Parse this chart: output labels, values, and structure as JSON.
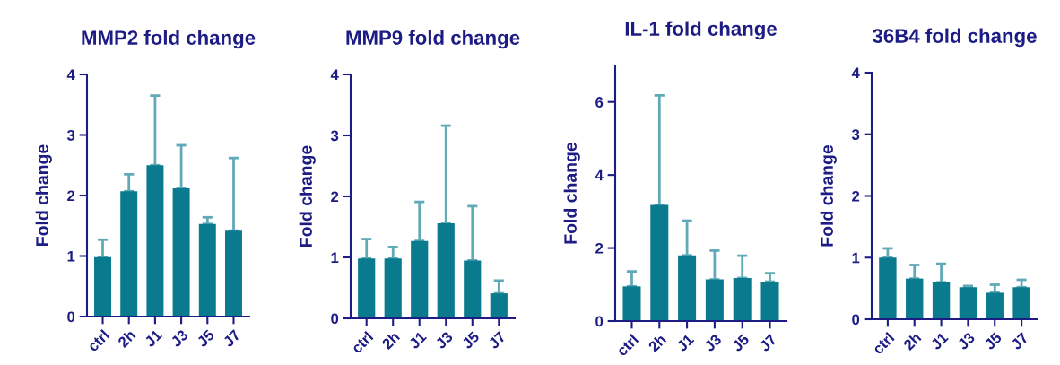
{
  "chart_data": [
    {
      "type": "bar",
      "title": "MMP2 fold change",
      "ylabel": "Fold change",
      "categories": [
        "ctrl",
        "2h",
        "J1",
        "J3",
        "J5",
        "J7"
      ],
      "ylim": [
        0,
        4
      ],
      "yticks": [
        0,
        1,
        2,
        3,
        4
      ],
      "grid": false,
      "legend": false,
      "series": [
        {
          "color": "#0a7a8e",
          "values": [
            0.98,
            2.07,
            2.5,
            2.12,
            1.53,
            1.42
          ],
          "errors": [
            [
              0.98,
              1.27
            ],
            [
              2.07,
              2.35
            ],
            [
              2.5,
              3.65
            ],
            [
              2.12,
              2.83
            ],
            [
              1.53,
              1.64
            ],
            [
              1.42,
              2.62
            ]
          ]
        }
      ]
    },
    {
      "type": "bar",
      "title": "MMP9 fold change",
      "ylabel": "Fold change",
      "categories": [
        "ctrl",
        "2h",
        "J1",
        "J3",
        "J5",
        "J7"
      ],
      "ylim": [
        0,
        4
      ],
      "yticks": [
        0,
        1,
        2,
        3,
        4
      ],
      "grid": false,
      "legend": false,
      "series": [
        {
          "color": "#0a7a8e",
          "values": [
            0.98,
            0.98,
            1.27,
            1.56,
            0.95,
            0.41
          ],
          "errors": [
            [
              0.98,
              1.3
            ],
            [
              0.98,
              1.17
            ],
            [
              1.27,
              1.91
            ],
            [
              1.56,
              3.16
            ],
            [
              0.95,
              1.84
            ],
            [
              0.41,
              0.62
            ]
          ]
        }
      ]
    },
    {
      "type": "bar",
      "title": "IL-1 fold change",
      "ylabel": "Fold change",
      "categories": [
        "ctrl",
        "2h",
        "J1",
        "J3",
        "J5",
        "J7"
      ],
      "ylim": [
        0,
        7
      ],
      "yticks": [
        0,
        2,
        4,
        6
      ],
      "grid": false,
      "legend": false,
      "series": [
        {
          "color": "#0a7a8e",
          "values": [
            0.95,
            3.18,
            1.8,
            1.14,
            1.18,
            1.08
          ],
          "errors": [
            [
              0.95,
              1.36
            ],
            [
              3.18,
              6.18
            ],
            [
              1.8,
              2.75
            ],
            [
              1.14,
              1.93
            ],
            [
              1.18,
              1.79
            ],
            [
              1.08,
              1.31
            ]
          ]
        }
      ]
    },
    {
      "type": "bar",
      "title": "36B4 fold change",
      "ylabel": "Fold change",
      "categories": [
        "ctrl",
        "2h",
        "J1",
        "J3",
        "J5",
        "J7"
      ],
      "ylim": [
        0,
        4
      ],
      "yticks": [
        0,
        1,
        2,
        3,
        4
      ],
      "grid": false,
      "legend": false,
      "series": [
        {
          "color": "#0a7a8e",
          "values": [
            1.0,
            0.66,
            0.6,
            0.52,
            0.43,
            0.52
          ],
          "errors": [
            [
              1.0,
              1.15
            ],
            [
              0.66,
              0.88
            ],
            [
              0.6,
              0.9
            ],
            [
              0.52,
              0.54
            ],
            [
              0.43,
              0.56
            ],
            [
              0.52,
              0.64
            ]
          ]
        }
      ]
    }
  ]
}
